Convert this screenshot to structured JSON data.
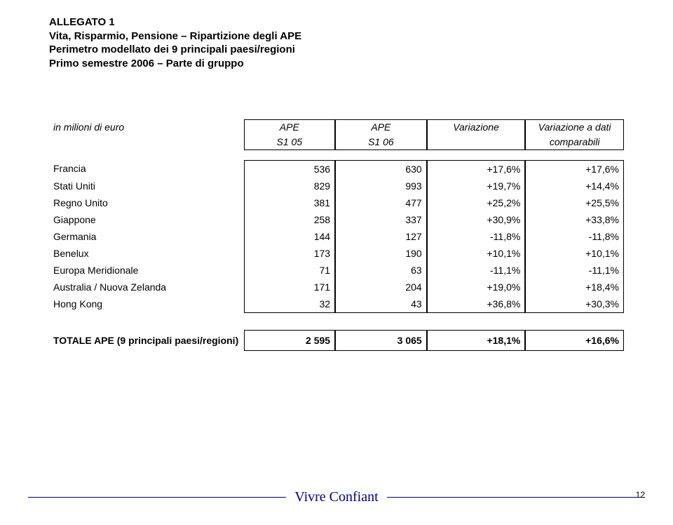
{
  "header": {
    "line1": "ALLEGATO 1",
    "line2": "Vita, Risparmio, Pensione – Ripartizione degli APE",
    "line3": "Perimetro modellato dei 9 principali paesi/regioni",
    "line4": "Primo semestre 2006 – Parte di gruppo"
  },
  "table": {
    "row_header_label": "in milioni di euro",
    "col_headers": {
      "a1": "APE",
      "a2": "S1 05",
      "b1": "APE",
      "b2": "S1 06",
      "c1": "Variazione",
      "c2": "",
      "d1": "Variazione a dati",
      "d2": "comparabili"
    },
    "rows": [
      {
        "label": "Francia",
        "a": "536",
        "b": "630",
        "c": "+17,6%",
        "d": "+17,6%"
      },
      {
        "label": "Stati Uniti",
        "a": "829",
        "b": "993",
        "c": "+19,7%",
        "d": "+14,4%"
      },
      {
        "label": "Regno Unito",
        "a": "381",
        "b": "477",
        "c": "+25,2%",
        "d": "+25,5%"
      },
      {
        "label": "Giappone",
        "a": "258",
        "b": "337",
        "c": "+30,9%",
        "d": "+33,8%"
      },
      {
        "label": "Germania",
        "a": "144",
        "b": "127",
        "c": "-11,8%",
        "d": "-11,8%"
      },
      {
        "label": "Benelux",
        "a": "173",
        "b": "190",
        "c": "+10,1%",
        "d": "+10,1%"
      },
      {
        "label": "Europa Meridionale",
        "a": "71",
        "b": "63",
        "c": "-11,1%",
        "d": "-11,1%"
      },
      {
        "label": "Australia / Nuova Zelanda",
        "a": "171",
        "b": "204",
        "c": "+19,0%",
        "d": "+18,4%"
      },
      {
        "label": "Hong Kong",
        "a": "32",
        "b": "43",
        "c": "+36,8%",
        "d": "+30,3%"
      }
    ],
    "total": {
      "label": "TOTALE APE (9 principali paesi/regioni)",
      "a": "2 595",
      "b": "3 065",
      "c": "+18,1%",
      "d": "+16,6%"
    }
  },
  "footer": {
    "text": "Vivre Confiant",
    "page": "12"
  },
  "style": {
    "text_color": "#000000",
    "accent_color": "#000080",
    "background": "#ffffff",
    "font_size_body": 14,
    "font_size_header": 15,
    "font_size_footer": 20
  }
}
